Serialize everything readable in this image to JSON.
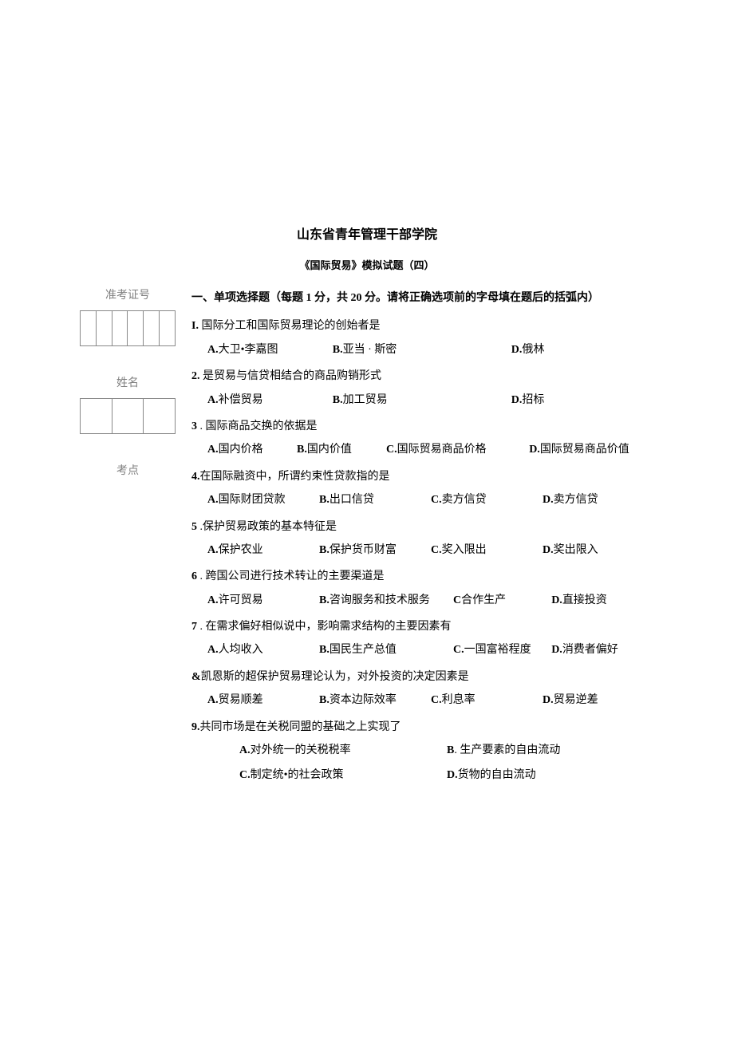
{
  "header": {
    "title": "山东省青年管理干部学院",
    "subtitle": "《国际贸易》模拟试题（四）"
  },
  "sidebar": {
    "exam_id_label": "准考证号",
    "name_label": "姓名",
    "site_label": "考点"
  },
  "section": {
    "header": "一、单项选择题（每题 1 分，共 20 分。请将正确选项前的字母填在题后的括弧内）"
  },
  "questions": [
    {
      "num": "I.",
      "stem": " 国际分工和国际贸易理论的创始者是",
      "layout": "opt-3",
      "opts": [
        {
          "l": "A.",
          "t": "大卫•李嘉图"
        },
        {
          "l": "B.",
          "t": "亚当 · 斯密"
        },
        {
          "l": "D.",
          "t": "俄林"
        }
      ]
    },
    {
      "num": "2.",
      "stem": "              是贸易与信贷相结合的商品购销形式",
      "layout": "opt-3",
      "opts": [
        {
          "l": "A.",
          "t": "补偿贸易"
        },
        {
          "l": "B.",
          "t": "加工贸易"
        },
        {
          "l": "D.",
          "t": "招标"
        }
      ]
    },
    {
      "num": "3",
      "stem": "        . 国际商品交换的依据是",
      "layout": "opt-4b",
      "opts": [
        {
          "l": "A.",
          "t": "国内价格"
        },
        {
          "l": "B.",
          "t": "国内价值"
        },
        {
          "l": "C.",
          "t": " 国际贸易商品价格"
        },
        {
          "l": "D.",
          "t": "国际贸易商品价值"
        }
      ]
    },
    {
      "num": "4.",
      "stem": "在国际融资中，所谓约束性贷款指的是",
      "layout": "opt-4",
      "opts": [
        {
          "l": "A.",
          "t": "国际财团贷款"
        },
        {
          "l": "B.",
          "t": "出口信贷"
        },
        {
          "l": "C.",
          "t": "卖方信贷"
        },
        {
          "l": "D.",
          "t": "卖方信贷"
        }
      ]
    },
    {
      "num": "5",
      "stem": "   .保护贸易政策的基本特征是",
      "layout": "opt-4",
      "opts": [
        {
          "l": "A.",
          "t": "保护农业"
        },
        {
          "l": "B.",
          "t": "保护货币财富"
        },
        {
          "l": "C.",
          "t": "奖入限出"
        },
        {
          "l": "D.",
          "t": "奖出限入"
        }
      ]
    },
    {
      "num": "6",
      "stem": "   . 跨国公司进行技术转让的主要渠道是",
      "layout": "opt-4c",
      "opts": [
        {
          "l": "A.",
          "t": "许可贸易"
        },
        {
          "l": "B.",
          "t": "咨询服务和技术服务"
        },
        {
          "l": "C",
          "t": " 合作生产"
        },
        {
          "l": "D.",
          "t": "直接投资"
        }
      ]
    },
    {
      "num": "7",
      "stem": "   . 在需求偏好相似说中，影响需求结构的主要因素有",
      "layout": "opt-4c",
      "opts": [
        {
          "l": "A.",
          "t": "人均收入"
        },
        {
          "l": "B.",
          "t": "国民生产总值"
        },
        {
          "l": "C.",
          "t": " 一国富裕程度"
        },
        {
          "l": "D.",
          "t": "消费者偏好"
        }
      ]
    },
    {
      "num": "&",
      "stem": "凯恩斯的超保护贸易理论认为，对外投资的决定因素是",
      "layout": "opt-4",
      "opts": [
        {
          "l": "A.",
          "t": "贸易顺差"
        },
        {
          "l": "B.",
          "t": "资本边际效率"
        },
        {
          "l": "C.",
          "t": "利息率"
        },
        {
          "l": "D.",
          "t": "贸易逆差"
        }
      ]
    },
    {
      "num": "9.",
      "stem": "共同市场是在关税同盟的基础之上实现了",
      "layout": "opt-2-block",
      "opts": [
        {
          "l": "A.",
          "t": "对外统一的关税税率"
        },
        {
          "l": "B",
          "t": " . 生产要素的自由流动"
        },
        {
          "l": "C.",
          "t": "制定统•的社会政策"
        },
        {
          "l": "D.",
          "t": "货物的自由流动"
        }
      ]
    }
  ]
}
